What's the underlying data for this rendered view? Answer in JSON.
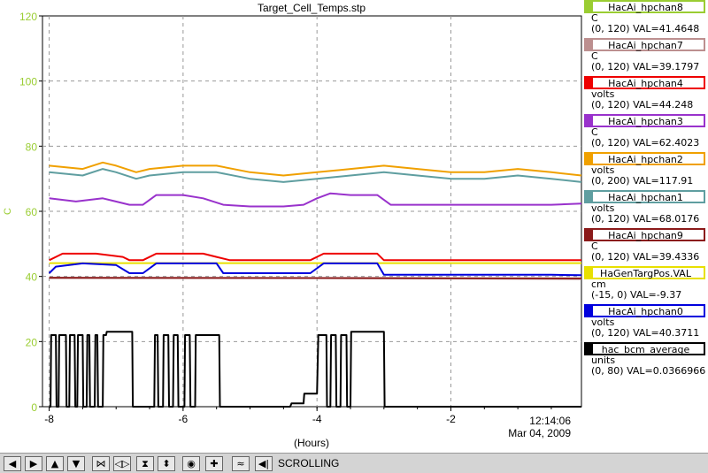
{
  "chart_data": {
    "type": "line",
    "title": "Target_Cell_Temps.stp",
    "xlabel": "(Hours)",
    "ylabel": "C",
    "xlim": [
      -8.1,
      -0.05
    ],
    "ylim": [
      0,
      120
    ],
    "x_ticks": [
      -8,
      -6,
      -4,
      -2
    ],
    "x_tick_labels": [
      "-8",
      "-6",
      "-4",
      "-2"
    ],
    "y_ticks": [
      0,
      20,
      40,
      60,
      80,
      100,
      120
    ],
    "y_tick_labels": [
      "0",
      "20",
      "40",
      "60",
      "80",
      "100",
      "120"
    ],
    "grid": true,
    "end_time": "12:14:06",
    "end_date": "Mar 04, 2009",
    "series": [
      {
        "name": "HacAi_hpchan2",
        "color": "#f0a000",
        "x": [
          -8.0,
          -7.5,
          -7.2,
          -7.0,
          -6.7,
          -6.5,
          -6.0,
          -5.5,
          -5.0,
          -4.5,
          -4.0,
          -3.5,
          -3.0,
          -2.5,
          -2.0,
          -1.5,
          -1.0,
          -0.5,
          -0.05
        ],
        "y": [
          74,
          73,
          75,
          74,
          72,
          73,
          74,
          74,
          72,
          71,
          72,
          73,
          74,
          73,
          72,
          72,
          73,
          72,
          71
        ]
      },
      {
        "name": "HacAi_hpchan1",
        "color": "#5f9ea0",
        "x": [
          -8.0,
          -7.5,
          -7.2,
          -7.0,
          -6.7,
          -6.5,
          -6.0,
          -5.5,
          -5.0,
          -4.5,
          -4.0,
          -3.5,
          -3.0,
          -2.5,
          -2.0,
          -1.5,
          -1.0,
          -0.5,
          -0.05
        ],
        "y": [
          72,
          71,
          73,
          72,
          70,
          71,
          72,
          72,
          70,
          69,
          70,
          71,
          72,
          71,
          70,
          70,
          71,
          70,
          69
        ]
      },
      {
        "name": "HacAi_hpchan3",
        "color": "#9932cc",
        "x": [
          -8.0,
          -7.6,
          -7.2,
          -6.8,
          -6.6,
          -6.4,
          -6.0,
          -5.7,
          -5.4,
          -5.0,
          -4.5,
          -4.2,
          -4.0,
          -3.8,
          -3.5,
          -3.1,
          -2.9,
          -2.5,
          -2.0,
          -1.5,
          -1.0,
          -0.5,
          -0.05
        ],
        "y": [
          64,
          63,
          64,
          62,
          62,
          65,
          65,
          64,
          62,
          61.5,
          61.5,
          62,
          64,
          65.5,
          65,
          65,
          62,
          62,
          62,
          62,
          62,
          62,
          62.4
        ]
      },
      {
        "name": "HacAi_hpchan4",
        "color": "#ee0000",
        "x": [
          -8.0,
          -7.8,
          -7.3,
          -6.9,
          -6.8,
          -6.6,
          -6.4,
          -6.0,
          -5.7,
          -5.5,
          -5.3,
          -5.0,
          -4.5,
          -4.1,
          -3.9,
          -3.6,
          -3.1,
          -3.0,
          -2.5,
          -2.0,
          -1.5,
          -1.0,
          -0.5,
          -0.05
        ],
        "y": [
          45,
          47,
          47,
          46,
          45,
          45,
          47,
          47,
          47,
          46,
          45,
          45,
          45,
          45,
          47,
          47,
          47,
          45,
          45,
          45,
          45,
          45,
          45,
          45
        ]
      },
      {
        "name": "HaGenTargPos.VAL",
        "color": "#e8e000",
        "x": [
          -8.0,
          -6.0,
          -4.0,
          -2.0,
          -0.05
        ],
        "y": [
          44.1,
          44.1,
          44.1,
          44.1,
          44.1
        ]
      },
      {
        "name": "HacAi_hpchan0",
        "color": "#0000dd",
        "x": [
          -8.0,
          -7.9,
          -7.5,
          -7.0,
          -6.8,
          -6.6,
          -6.4,
          -6.0,
          -5.7,
          -5.5,
          -5.4,
          -5.0,
          -4.5,
          -4.1,
          -3.9,
          -3.6,
          -3.1,
          -3.0,
          -2.5,
          -2.0,
          -1.5,
          -1.0,
          -0.5,
          -0.05
        ],
        "y": [
          41,
          43,
          44,
          43.5,
          41,
          41,
          44,
          44,
          44,
          44,
          41,
          41,
          41,
          41,
          44,
          44,
          44,
          40.5,
          40.5,
          40.5,
          40.5,
          40.5,
          40.5,
          40.4
        ]
      },
      {
        "name": "HacAi_hpchan7",
        "color": "#bc8f8f",
        "x": [
          -8.0,
          -4.0,
          -0.05
        ],
        "y": [
          39.5,
          39.5,
          39.2
        ]
      },
      {
        "name": "HacAi_hpchan9",
        "color": "#8b1a1a",
        "x": [
          -8.0,
          -4.0,
          -0.05
        ],
        "y": [
          39.6,
          39.5,
          39.4
        ]
      },
      {
        "name": "hac_bcm_average",
        "color": "#000000",
        "x": [
          -8.0,
          -7.98,
          -7.97,
          -7.9,
          -7.89,
          -7.86,
          -7.85,
          -7.75,
          -7.74,
          -7.7,
          -7.69,
          -7.62,
          -7.61,
          -7.58,
          -7.57,
          -7.5,
          -7.49,
          -7.44,
          -7.43,
          -7.4,
          -7.39,
          -7.32,
          -7.31,
          -7.28,
          -7.27,
          -7.2,
          -7.19,
          -7.15,
          -7.14,
          -6.76,
          -6.75,
          -6.43,
          -6.42,
          -6.38,
          -6.37,
          -6.3,
          -6.29,
          -6.22,
          -6.21,
          -6.15,
          -6.14,
          -6.08,
          -6.07,
          -5.98,
          -5.97,
          -5.9,
          -5.89,
          -5.82,
          -5.81,
          -5.46,
          -5.45,
          -4.4,
          -4.38,
          -4.2,
          -4.19,
          -4.0,
          -3.98,
          -3.86,
          -3.85,
          -3.8,
          -3.79,
          -3.72,
          -3.71,
          -3.65,
          -3.64,
          -3.56,
          -3.55,
          -3.5,
          -3.49,
          -3.0,
          -2.99,
          -0.05
        ],
        "y": [
          0,
          0,
          22,
          22,
          0,
          0,
          22,
          22,
          0,
          0,
          22,
          22,
          0,
          0,
          22,
          22,
          0,
          0,
          22,
          22,
          0,
          0,
          22,
          22,
          0,
          0,
          22,
          22,
          23,
          23,
          0,
          0,
          22,
          22,
          0,
          0,
          22,
          22,
          0,
          0,
          22,
          22,
          0,
          0,
          22,
          22,
          0,
          0,
          22,
          22,
          0,
          0,
          1,
          1,
          4,
          4,
          22,
          22,
          0,
          0,
          22,
          22,
          0,
          0,
          22,
          22,
          0,
          0,
          23,
          23,
          0,
          0
        ]
      }
    ]
  },
  "legend": [
    {
      "name": "HacAi_hpchan8",
      "color": "#9acd32",
      "unit": "C",
      "range": "(0, 120) VAL=41.4648"
    },
    {
      "name": "HacAi_hpchan7",
      "color": "#bc8f8f",
      "unit": "C",
      "range": "(0, 120) VAL=39.1797"
    },
    {
      "name": "HacAi_hpchan4",
      "color": "#ee0000",
      "unit": "volts",
      "range": "(0, 120) VAL=44.248"
    },
    {
      "name": "HacAi_hpchan3",
      "color": "#9932cc",
      "unit": "C",
      "range": "(0, 120) VAL=62.4023"
    },
    {
      "name": "HacAi_hpchan2",
      "color": "#f0a000",
      "unit": "volts",
      "range": "(0, 200) VAL=117.91"
    },
    {
      "name": "HacAi_hpchan1",
      "color": "#5f9ea0",
      "unit": "volts",
      "range": "(0, 120) VAL=68.0176"
    },
    {
      "name": "HacAi_hpchan9",
      "color": "#8b1a1a",
      "unit": "C",
      "range": "(0, 120) VAL=39.4336"
    },
    {
      "name": "HaGenTargPos.VAL",
      "color": "#e8e000",
      "unit": "cm",
      "range": "(-15, 0) VAL=-9.37"
    },
    {
      "name": "HacAi_hpchan0",
      "color": "#0000dd",
      "unit": "volts",
      "range": "(0, 120) VAL=40.3711"
    },
    {
      "name": "hac_bcm_average",
      "color": "#000000",
      "unit": "units",
      "range": "(0, 80) VAL=0.0366966"
    }
  ],
  "axis_color": "#9acd32",
  "toolbar": {
    "buttons": [
      {
        "name": "scroll-left-button",
        "glyph": "◀"
      },
      {
        "name": "scroll-right-button",
        "glyph": "▶"
      },
      {
        "name": "scroll-up-button",
        "glyph": "▲"
      },
      {
        "name": "scroll-down-button",
        "glyph": "▼"
      },
      {
        "name": "zoom-in-x-button",
        "glyph": "⋈"
      },
      {
        "name": "zoom-out-x-button",
        "glyph": "◁▷"
      },
      {
        "name": "zoom-in-y-button",
        "glyph": "⧗"
      },
      {
        "name": "zoom-out-y-button",
        "glyph": "⬍"
      },
      {
        "name": "autoscale-button",
        "glyph": "◉"
      },
      {
        "name": "add-button",
        "glyph": "✚"
      },
      {
        "name": "plot-style-button",
        "glyph": "≈"
      },
      {
        "name": "resume-scroll-button",
        "glyph": "◀|"
      }
    ],
    "status": "SCROLLING"
  }
}
